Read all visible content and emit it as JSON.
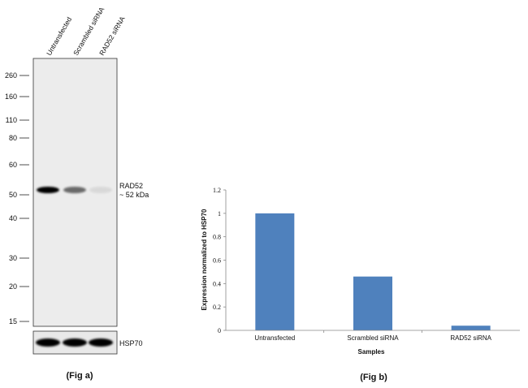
{
  "figure_a": {
    "caption": "(Fig a)",
    "lanes": [
      "Untransfected",
      "Scrambled siRNA",
      "RAD52 siRNA"
    ],
    "markers": [
      "260",
      "160",
      "110",
      "80",
      "60",
      "50",
      "40",
      "30",
      "20",
      "15"
    ],
    "band_label": "RAD52",
    "band_size": "~ 52 kDa",
    "loading_control": "HSP70",
    "band_intensity": [
      1.0,
      0.55,
      0.08
    ],
    "control_intensity": [
      1.0,
      1.0,
      1.0
    ]
  },
  "figure_b": {
    "caption": "(Fig b)"
  },
  "chart_data": {
    "type": "bar",
    "categories": [
      "Untransfected",
      "Scrambled siRNA",
      "RAD52 siRNA"
    ],
    "values": [
      1.0,
      0.46,
      0.04
    ],
    "xlabel": "Samples",
    "ylabel": "Expression  normalized to HSP70",
    "ylim": [
      0,
      1.2
    ],
    "yticks": [
      "0",
      "0.2",
      "0.4",
      "0.6",
      "0.8",
      "1",
      "1.2"
    ],
    "bar_color": "#4f81bd",
    "grid": false,
    "legend": "none"
  }
}
